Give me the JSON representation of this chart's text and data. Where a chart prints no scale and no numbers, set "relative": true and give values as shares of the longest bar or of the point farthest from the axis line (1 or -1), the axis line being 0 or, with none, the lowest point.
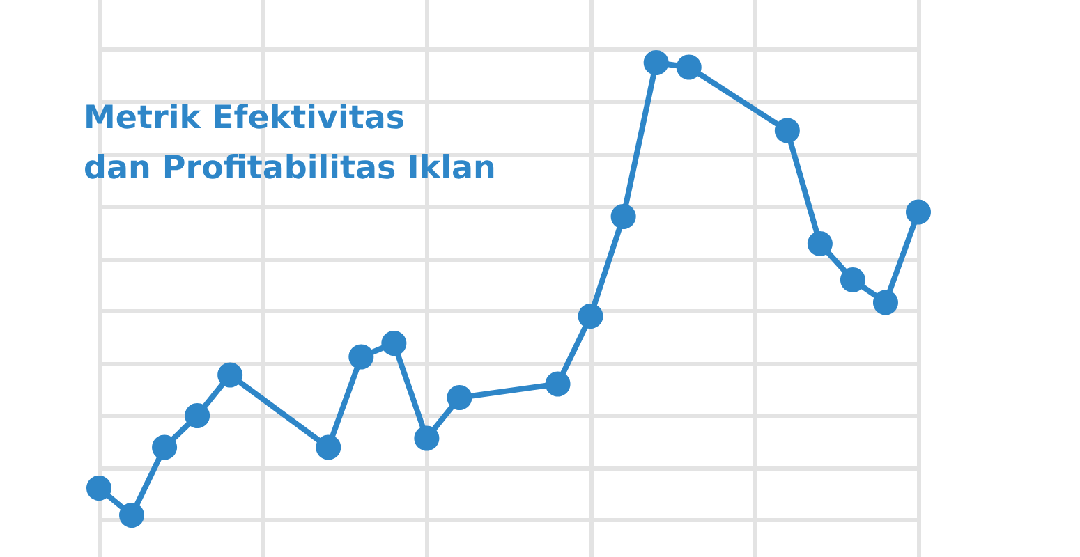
{
  "chart_data": {
    "type": "line",
    "title": "Metrik Efektivitas\ndan Profitabilitas Iklan",
    "relative": true,
    "categories": [
      null,
      null,
      null,
      null,
      null,
      null,
      null,
      null,
      null,
      null,
      null,
      null,
      null,
      null,
      null,
      null,
      null,
      null,
      null,
      null,
      null,
      null,
      null,
      null,
      null,
      null
    ],
    "series": [
      {
        "color": "#2e86c8",
        "values": [
          0.06,
          0,
          0.15,
          0.22,
          0.31,
          null,
          null,
          0.15,
          0.35,
          0.38,
          0.17,
          0.26,
          null,
          null,
          0.29,
          0.44,
          0.66,
          1,
          0.99,
          null,
          null,
          0.85,
          0.6,
          0.52,
          0.47,
          0.67
        ]
      }
    ],
    "grid": true,
    "marker": "circle",
    "line_style": "solid",
    "tick_labels": false
  }
}
